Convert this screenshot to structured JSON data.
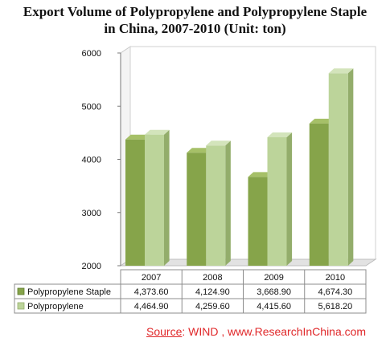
{
  "title": {
    "line1": "Export Volume of Polypropylene and Polypropylene Staple",
    "line2": "in China, 2007-2010 (Unit: ton)"
  },
  "source": {
    "label": "Source",
    "text": ": WIND , www.ResearchInChina.com"
  },
  "colors": {
    "staple_front": "#86a44a",
    "staple_side": "#5f7a2f",
    "staple_top": "#a6c068",
    "pp_front": "#bcd49a",
    "pp_side": "#93ad6b",
    "pp_top": "#d3e4bb",
    "source": "#e0282a"
  },
  "chart_data": {
    "type": "bar",
    "categories": [
      "2007",
      "2008",
      "2009",
      "2010"
    ],
    "series": [
      {
        "name": "Polypropylene Staple",
        "values": [
          4373.6,
          4124.9,
          3668.9,
          4674.3
        ],
        "labels": [
          "4,373.60",
          "4,124.90",
          "3,668.90",
          "4,674.30"
        ]
      },
      {
        "name": "Polypropylene",
        "values": [
          4464.9,
          4259.6,
          4415.6,
          5618.2
        ],
        "labels": [
          "4,464.90",
          "4,259.60",
          "4,415.60",
          "5,618.20"
        ]
      }
    ],
    "ylim": [
      2000,
      6000
    ],
    "yticks": [
      "2000",
      "3000",
      "4000",
      "5000",
      "6000"
    ],
    "grid": false,
    "legend": "data-table"
  }
}
